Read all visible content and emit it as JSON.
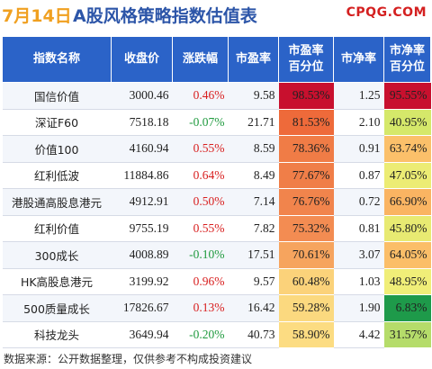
{
  "header": {
    "date": "7月14日",
    "title": "A股风格策略指数估值表",
    "brand": "CPQG.COM"
  },
  "columns": [
    "指数名称",
    "收盘价",
    "涨跌幅",
    "市盈率",
    "市盈率\n百分位",
    "市净率",
    "市净率\n百分位"
  ],
  "rows": [
    {
      "name": "国信价值",
      "close": "3000.46",
      "change": "0.46%",
      "dir": "up",
      "pe": "9.58",
      "pe_pct": "98.53%",
      "pe_color": "#c8102e",
      "pb": "1.25",
      "pb_pct": "95.55%",
      "pb_color": "#c8102e"
    },
    {
      "name": "深证F60",
      "close": "7518.18",
      "change": "-0.07%",
      "dir": "down",
      "pe": "21.71",
      "pe_pct": "81.53%",
      "pe_color": "#ee6a3a",
      "pb": "2.10",
      "pb_pct": "40.95%",
      "pb_color": "#d5e86a"
    },
    {
      "name": "价值100",
      "close": "4160.94",
      "change": "0.55%",
      "dir": "up",
      "pe": "8.59",
      "pe_pct": "78.36%",
      "pe_color": "#f07c46",
      "pb": "0.91",
      "pb_pct": "63.74%",
      "pb_color": "#fbc06a"
    },
    {
      "name": "红利低波",
      "close": "11884.86",
      "change": "0.64%",
      "dir": "up",
      "pe": "8.49",
      "pe_pct": "77.67%",
      "pe_color": "#f07e48",
      "pb": "0.87",
      "pb_pct": "47.05%",
      "pb_color": "#ecec74"
    },
    {
      "name": "港股通高股息港元",
      "close": "4912.91",
      "change": "0.50%",
      "dir": "up",
      "pe": "7.14",
      "pe_pct": "76.76%",
      "pe_color": "#f1844c",
      "pb": "0.72",
      "pb_pct": "66.90%",
      "pb_color": "#fab462"
    },
    {
      "name": "红利价值",
      "close": "9755.19",
      "change": "0.55%",
      "dir": "up",
      "pe": "7.82",
      "pe_pct": "75.32%",
      "pe_color": "#f38c52",
      "pb": "0.81",
      "pb_pct": "45.80%",
      "pb_color": "#e8ea72"
    },
    {
      "name": "300成长",
      "close": "4008.89",
      "change": "-0.10%",
      "dir": "down",
      "pe": "17.51",
      "pe_pct": "70.61%",
      "pe_color": "#f6a45e",
      "pb": "3.07",
      "pb_pct": "64.05%",
      "pb_color": "#fbbe68"
    },
    {
      "name": "HK高股息港元",
      "close": "3199.92",
      "change": "0.96%",
      "dir": "up",
      "pe": "9.57",
      "pe_pct": "60.48%",
      "pe_color": "#fbd27a",
      "pb": "1.03",
      "pb_pct": "48.95%",
      "pb_color": "#f0ee78"
    },
    {
      "name": "500质量成长",
      "close": "17826.67",
      "change": "0.13%",
      "dir": "up",
      "pe": "16.42",
      "pe_pct": "59.28%",
      "pe_color": "#fbd97f",
      "pb": "1.90",
      "pb_pct": "6.83%",
      "pb_color": "#1e9a4a"
    },
    {
      "name": "科技龙头",
      "close": "3649.94",
      "change": "-0.20%",
      "dir": "down",
      "pe": "40.73",
      "pe_pct": "58.90%",
      "pe_color": "#fcdc82",
      "pb": "4.42",
      "pb_pct": "31.57%",
      "pb_color": "#b5dc6a"
    }
  ],
  "footer": "数据来源：公开数据整理，仅供参考不构成投资建议"
}
